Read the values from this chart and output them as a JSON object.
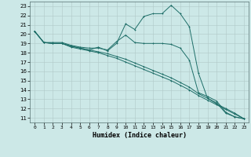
{
  "xlabel": "Humidex (Indice chaleur)",
  "xlim": [
    -0.5,
    23.5
  ],
  "ylim": [
    10.5,
    23.5
  ],
  "yticks": [
    11,
    12,
    13,
    14,
    15,
    16,
    17,
    18,
    19,
    20,
    21,
    22,
    23
  ],
  "xticks": [
    0,
    1,
    2,
    3,
    4,
    5,
    6,
    7,
    8,
    9,
    10,
    11,
    12,
    13,
    14,
    15,
    16,
    17,
    18,
    19,
    20,
    21,
    22,
    23
  ],
  "bg_color": "#cce8e7",
  "grid_color": "#b0c8c8",
  "line_color": "#1e6e68",
  "line1_y": [
    20.3,
    19.1,
    19.0,
    19.0,
    18.7,
    18.5,
    18.3,
    18.6,
    18.2,
    19.0,
    21.1,
    20.5,
    21.9,
    22.2,
    22.2,
    23.1,
    22.2,
    20.8,
    15.8,
    13.1,
    12.6,
    11.5,
    11.1,
    10.9
  ],
  "line2_y": [
    20.3,
    19.1,
    19.0,
    19.0,
    18.6,
    18.4,
    18.2,
    18.0,
    17.7,
    17.4,
    17.0,
    16.6,
    16.2,
    15.8,
    15.4,
    15.0,
    14.5,
    14.0,
    13.4,
    12.9,
    12.4,
    11.9,
    11.4,
    10.9
  ],
  "line3_y": [
    20.3,
    19.1,
    19.1,
    19.1,
    18.8,
    18.6,
    18.5,
    18.5,
    18.3,
    19.2,
    19.9,
    19.1,
    19.0,
    19.0,
    19.0,
    18.9,
    18.5,
    17.2,
    13.7,
    13.3,
    12.8,
    11.6,
    11.1,
    10.9
  ],
  "line4_y": [
    20.3,
    19.1,
    19.0,
    19.0,
    18.7,
    18.5,
    18.3,
    18.1,
    17.9,
    17.6,
    17.3,
    16.9,
    16.5,
    16.1,
    15.7,
    15.3,
    14.8,
    14.3,
    13.6,
    13.1,
    12.5,
    12.0,
    11.5,
    10.9
  ]
}
